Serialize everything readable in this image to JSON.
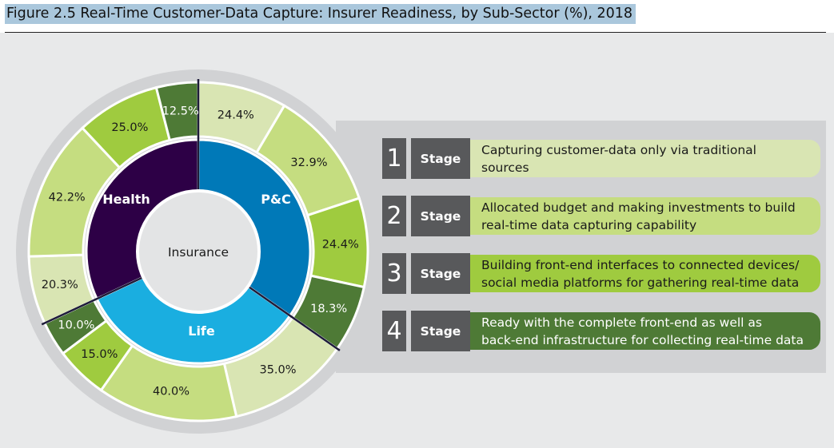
{
  "figure": {
    "title": "Figure 2.5 Real-Time Customer-Data Capture: Insurer Readiness, by Sub-Sector (%), 2018"
  },
  "colors": {
    "stage1": "#d9e5b3",
    "stage2": "#c5dd80",
    "stage3": "#9fcb3f",
    "stage4": "#4e7a36",
    "health": "#2d0046",
    "pc": "#0079b8",
    "life": "#1aaee0",
    "center": "#e3e4e5",
    "stage_box": "#58595b"
  },
  "chart_data": {
    "type": "sunburst",
    "title": "Real-Time Customer-Data Capture: Insurer Readiness, by Sub-Sector (%), 2018",
    "center_label": "Insurance",
    "unit": "%",
    "sectors": [
      {
        "name": "P&C",
        "segments": [
          {
            "stage": 1,
            "value": 24.4,
            "label": "24.4%"
          },
          {
            "stage": 2,
            "value": 32.9,
            "label": "32.9%"
          },
          {
            "stage": 3,
            "value": 24.4,
            "label": "24.4%"
          },
          {
            "stage": 4,
            "value": 18.3,
            "label": "18.3%"
          }
        ]
      },
      {
        "name": "Life",
        "segments": [
          {
            "stage": 1,
            "value": 35.0,
            "label": "35.0%"
          },
          {
            "stage": 2,
            "value": 40.0,
            "label": "40.0%"
          },
          {
            "stage": 3,
            "value": 15.0,
            "label": "15.0%"
          },
          {
            "stage": 4,
            "value": 10.0,
            "label": "10.0%"
          }
        ]
      },
      {
        "name": "Health",
        "segments": [
          {
            "stage": 1,
            "value": 20.3,
            "label": "20.3%"
          },
          {
            "stage": 2,
            "value": 42.2,
            "label": "42.2%"
          },
          {
            "stage": 3,
            "value": 25.0,
            "label": "25.0%"
          },
          {
            "stage": 4,
            "value": 12.5,
            "label": "12.5%"
          }
        ]
      }
    ]
  },
  "legend": {
    "stage_word": "Stage",
    "items": [
      {
        "number": "1",
        "line1": "Capturing customer-data only via traditional",
        "line2": "sources"
      },
      {
        "number": "2",
        "line1": "Allocated budget and making investments to build",
        "line2": "real-time data capturing capability"
      },
      {
        "number": "3",
        "line1": "Building front-end interfaces to connected devices/",
        "line2": "social media platforms for gathering real-time data"
      },
      {
        "number": "4",
        "line1": "Ready with the complete front-end as well as",
        "line2": "back-end infrastructure for collecting real-time data"
      }
    ]
  }
}
